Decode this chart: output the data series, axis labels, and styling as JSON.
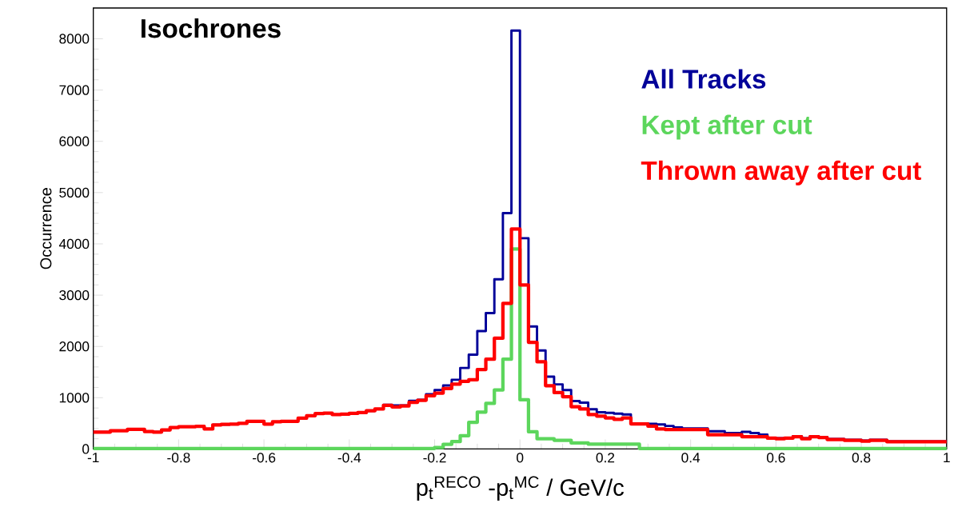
{
  "chart_data": {
    "type": "histogram",
    "title": "Isochrones",
    "xlabel": "p$_{t}$$^{RECO}$ -p$_{t}$$^{MC}$ / GeV/c",
    "ylabel": "Occurrence",
    "bins": [
      -1,
      -0.98,
      -0.96,
      -0.94,
      -0.92,
      -0.9,
      -0.88,
      -0.86,
      -0.84,
      -0.82,
      -0.8,
      -0.78,
      -0.76,
      -0.74,
      -0.72,
      -0.7,
      -0.68,
      -0.66,
      -0.64,
      -0.62,
      -0.6,
      -0.58,
      -0.56,
      -0.54,
      -0.52,
      -0.5,
      -0.48,
      -0.46,
      -0.44,
      -0.42,
      -0.4,
      -0.38,
      -0.36,
      -0.34,
      -0.32,
      -0.3,
      -0.28,
      -0.26,
      -0.24,
      -0.22,
      -0.2,
      -0.18,
      -0.16,
      -0.14,
      -0.12,
      -0.1,
      -0.08,
      -0.06,
      -0.04,
      -0.02,
      0,
      0.02,
      0.04,
      0.06,
      0.08,
      0.1,
      0.12,
      0.14,
      0.16,
      0.18,
      0.2,
      0.22,
      0.24,
      0.26,
      0.28,
      0.3,
      0.32,
      0.34,
      0.36,
      0.38,
      0.4,
      0.42,
      0.44,
      0.46,
      0.48,
      0.5,
      0.52,
      0.54,
      0.56,
      0.58,
      0.6,
      0.62,
      0.64,
      0.66,
      0.68,
      0.7,
      0.72,
      0.74,
      0.76,
      0.78,
      0.8,
      0.82,
      0.84,
      0.86,
      0.88,
      0.9,
      0.92,
      0.94,
      0.96,
      0.98,
      1
    ],
    "series": [
      {
        "name": "All Tracks",
        "color": "#000099",
        "values": [
          330,
          330,
          357,
          357,
          383,
          383,
          340,
          330,
          370,
          420,
          435,
          435,
          440,
          390,
          470,
          480,
          485,
          500,
          540,
          540,
          485,
          530,
          540,
          540,
          600,
          650,
          690,
          700,
          670,
          680,
          695,
          710,
          745,
          780,
          860,
          850,
          850,
          940,
          960,
          1070,
          1150,
          1240,
          1350,
          1580,
          1840,
          2300,
          2650,
          3310,
          4600,
          8160,
          4110,
          2390,
          1920,
          1410,
          1260,
          1150,
          935,
          904,
          775,
          716,
          705,
          690,
          675,
          500,
          500,
          490,
          480,
          450,
          420,
          400,
          400,
          400,
          345,
          345,
          310,
          310,
          335,
          310,
          280,
          220,
          210,
          220,
          250,
          210,
          250,
          235,
          195,
          195,
          180,
          180,
          165,
          180,
          180,
          150,
          150,
          150,
          150,
          150,
          150,
          150
        ]
      },
      {
        "name": "Kept after cut",
        "color": "#5cd65c",
        "values": [
          10,
          10,
          10,
          10,
          10,
          10,
          10,
          10,
          10,
          10,
          10,
          10,
          10,
          10,
          10,
          10,
          10,
          10,
          10,
          10,
          10,
          10,
          10,
          10,
          10,
          10,
          10,
          10,
          10,
          10,
          10,
          10,
          10,
          10,
          10,
          10,
          10,
          10,
          10,
          10,
          30,
          90,
          145,
          260,
          520,
          720,
          890,
          1150,
          1750,
          3900,
          960,
          335,
          200,
          200,
          170,
          170,
          118,
          118,
          93,
          93,
          93,
          93,
          93,
          93,
          10,
          10,
          10,
          10,
          10,
          10,
          10,
          10,
          10,
          10,
          10,
          10,
          10,
          10,
          10,
          10,
          10,
          10,
          10,
          10,
          10,
          10,
          10,
          10,
          10,
          10,
          10,
          10,
          10,
          10,
          10,
          10,
          10,
          10,
          10,
          10
        ]
      },
      {
        "name": "Thrown away after cut",
        "color": "#ff0000",
        "values": [
          330,
          330,
          357,
          357,
          383,
          383,
          340,
          330,
          370,
          420,
          435,
          435,
          440,
          390,
          470,
          480,
          485,
          500,
          540,
          540,
          485,
          530,
          540,
          540,
          600,
          650,
          690,
          700,
          670,
          680,
          695,
          710,
          745,
          780,
          850,
          820,
          840,
          910,
          950,
          1040,
          1090,
          1180,
          1265,
          1320,
          1350,
          1550,
          1750,
          2160,
          2840,
          4290,
          3200,
          2080,
          1700,
          1235,
          1100,
          1020,
          825,
          780,
          670,
          640,
          607,
          580,
          607,
          490,
          490,
          445,
          390,
          380,
          380,
          380,
          380,
          380,
          280,
          280,
          280,
          280,
          240,
          240,
          240,
          210,
          200,
          210,
          240,
          200,
          240,
          225,
          185,
          185,
          170,
          170,
          155,
          170,
          170,
          140,
          140,
          140,
          140,
          140,
          140,
          140
        ]
      }
    ],
    "xlim": [
      -1,
      1
    ],
    "ylim": [
      0,
      8600
    ],
    "xticks": [
      -1,
      -0.8,
      -0.6,
      -0.4,
      -0.2,
      0,
      0.2,
      0.4,
      0.6,
      0.8,
      1
    ],
    "yticks": [
      0,
      1000,
      2000,
      3000,
      4000,
      5000,
      6000,
      7000,
      8000
    ],
    "legend": "top right"
  }
}
